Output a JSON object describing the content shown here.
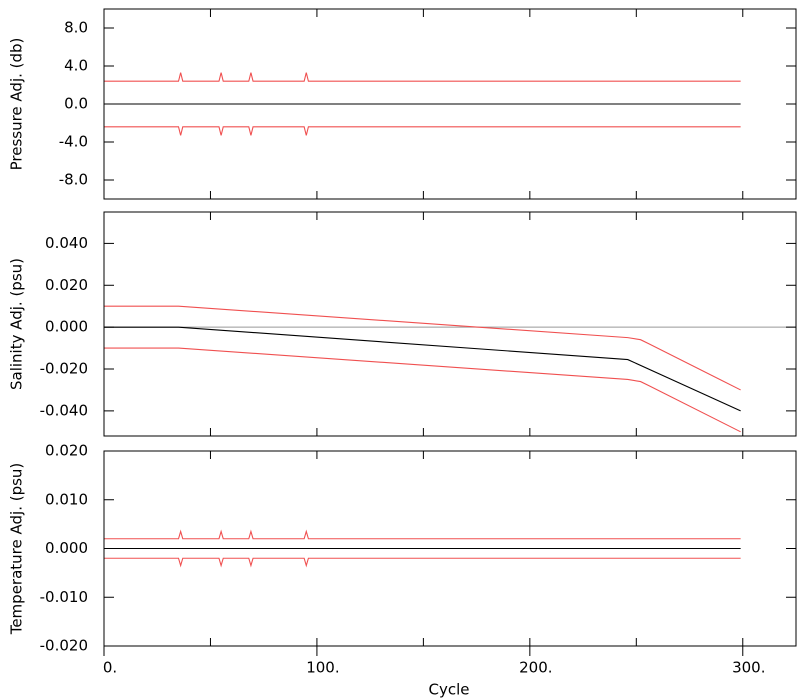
{
  "chart_data": [
    {
      "type": "line",
      "ylabel": "Pressure Adj. (db)",
      "xlim": [
        0,
        325
      ],
      "ylim": [
        -10,
        10
      ],
      "xticks": [
        0,
        50,
        100,
        150,
        200,
        250,
        300
      ],
      "yticks": [
        {
          "value": 8,
          "label": "8.0"
        },
        {
          "value": 4,
          "label": "4.0"
        },
        {
          "value": 0,
          "label": "0.0"
        },
        {
          "value": -4,
          "label": "-4.0"
        },
        {
          "value": -8,
          "label": "-8.0"
        }
      ],
      "series": [
        {
          "color": "#f05050",
          "x": [
            0,
            35,
            36,
            37,
            54,
            55,
            56,
            68,
            69,
            70,
            94,
            95,
            96,
            299
          ],
          "values": [
            2.4,
            2.4,
            3.3,
            2.4,
            2.4,
            3.3,
            2.4,
            2.4,
            3.3,
            2.4,
            2.4,
            3.3,
            2.4,
            2.4
          ]
        },
        {
          "color": "#f05050",
          "x": [
            0,
            35,
            36,
            37,
            54,
            55,
            56,
            68,
            69,
            70,
            94,
            95,
            96,
            299
          ],
          "values": [
            -2.4,
            -2.4,
            -3.3,
            -2.4,
            -2.4,
            -3.3,
            -2.4,
            -2.4,
            -3.3,
            -2.4,
            -2.4,
            -3.3,
            -2.4,
            -2.4
          ]
        },
        {
          "color": "#000000",
          "x": [
            0,
            299
          ],
          "values": [
            0,
            0
          ]
        }
      ]
    },
    {
      "type": "line",
      "ylabel": "Salinity Adj. (psu)",
      "xlim": [
        0,
        325
      ],
      "ylim": [
        -0.052,
        0.055
      ],
      "zero_line": true,
      "xticks": [
        0,
        50,
        100,
        150,
        200,
        250,
        300
      ],
      "yticks": [
        {
          "value": 0.04,
          "label": "0.040"
        },
        {
          "value": 0.02,
          "label": "0.020"
        },
        {
          "value": 0,
          "label": "0.000"
        },
        {
          "value": -0.02,
          "label": "-0.020"
        },
        {
          "value": -0.04,
          "label": "-0.040"
        }
      ],
      "series": [
        {
          "color": "#f05050",
          "x": [
            0,
            35,
            246,
            252,
            256,
            299
          ],
          "values": [
            0.01,
            0.01,
            -0.005,
            -0.006,
            -0.008,
            -0.03
          ]
        },
        {
          "color": "#f05050",
          "x": [
            0,
            35,
            246,
            252,
            256,
            299
          ],
          "values": [
            -0.01,
            -0.01,
            -0.025,
            -0.026,
            -0.028,
            -0.05
          ]
        },
        {
          "color": "#000000",
          "x": [
            0,
            35,
            246,
            299
          ],
          "values": [
            0,
            0,
            -0.0155,
            -0.04
          ]
        }
      ]
    },
    {
      "type": "line",
      "ylabel": "Temperature Adj. (psu)",
      "xlabel": "Cycle",
      "xlim": [
        0,
        325
      ],
      "ylim": [
        -0.02,
        0.02
      ],
      "xticks": [
        0,
        50,
        100,
        150,
        200,
        250,
        300
      ],
      "xticklabels": [
        {
          "value": 0,
          "label": "0."
        },
        {
          "value": 100,
          "label": "100."
        },
        {
          "value": 200,
          "label": "200."
        },
        {
          "value": 300,
          "label": "300."
        }
      ],
      "yticks": [
        {
          "value": 0.02,
          "label": "0.020"
        },
        {
          "value": 0.01,
          "label": "0.010"
        },
        {
          "value": 0,
          "label": "0.000"
        },
        {
          "value": -0.01,
          "label": "-0.010"
        },
        {
          "value": -0.02,
          "label": "-0.020"
        }
      ],
      "series": [
        {
          "color": "#f05050",
          "x": [
            0,
            35,
            36,
            37,
            54,
            55,
            56,
            68,
            69,
            70,
            94,
            95,
            96,
            299
          ],
          "values": [
            0.002,
            0.002,
            0.0035,
            0.002,
            0.002,
            0.0035,
            0.002,
            0.002,
            0.0035,
            0.002,
            0.002,
            0.0035,
            0.002,
            0.002
          ]
        },
        {
          "color": "#f05050",
          "x": [
            0,
            35,
            36,
            37,
            54,
            55,
            56,
            68,
            69,
            70,
            94,
            95,
            96,
            299
          ],
          "values": [
            -0.002,
            -0.002,
            -0.0035,
            -0.002,
            -0.002,
            -0.0035,
            -0.002,
            -0.002,
            -0.0035,
            -0.002,
            -0.002,
            -0.0035,
            -0.002,
            -0.002
          ]
        },
        {
          "color": "#000000",
          "x": [
            0,
            299
          ],
          "values": [
            0,
            0
          ]
        }
      ]
    }
  ]
}
